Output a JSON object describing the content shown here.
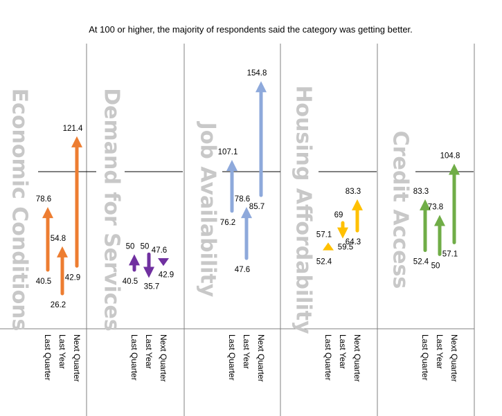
{
  "subtitle": "At 100 or higher, the majority of respondents said the category was getting better.",
  "chart_data": {
    "type": "arrow",
    "reference_value": 100,
    "ylim": [
      20,
      160
    ],
    "categories": [
      "Last Quarter",
      "Last Year",
      "Next Quarter"
    ],
    "panels": [
      {
        "title": "Economic Conditions",
        "color": "#ED7D31",
        "arrows": [
          {
            "category": "Last Quarter",
            "from": 40.5,
            "to": 78.6
          },
          {
            "category": "Last Year",
            "from": 26.2,
            "to": 54.8
          },
          {
            "category": "Next Quarter",
            "from": 42.9,
            "to": 121.4
          }
        ]
      },
      {
        "title": "Demand for Services",
        "color": "#7030A0",
        "arrows": [
          {
            "category": "Last Quarter",
            "from": 40.5,
            "to": 50
          },
          {
            "category": "Last Year",
            "from": 50,
            "to": 35.7
          },
          {
            "category": "Next Quarter",
            "from": 47.6,
            "to": 42.9
          }
        ]
      },
      {
        "title": "Job Availability",
        "color": "#8EA9DB",
        "arrows": [
          {
            "category": "Last Quarter",
            "from": 76.2,
            "to": 107.1
          },
          {
            "category": "Last Year",
            "from": 47.6,
            "to": 78.6
          },
          {
            "category": "Next Quarter",
            "from": 85.7,
            "to": 154.8
          }
        ]
      },
      {
        "title": "Housing Affordability",
        "color": "#FFC000",
        "arrows": [
          {
            "category": "Last Quarter",
            "from": 52.4,
            "to": 57.1
          },
          {
            "category": "Last Year",
            "from": 69.0,
            "to": 59.5
          },
          {
            "category": "Next Quarter",
            "from": 64.3,
            "to": 83.3
          }
        ]
      },
      {
        "title": "Credit Access",
        "color": "#70AD47",
        "arrows": [
          {
            "category": "Last Quarter",
            "from": 52.4,
            "to": 83.3
          },
          {
            "category": "Last Year",
            "from": 50.0,
            "to": 73.8
          },
          {
            "category": "Next Quarter",
            "from": 57.1,
            "to": 104.8
          }
        ]
      }
    ]
  }
}
